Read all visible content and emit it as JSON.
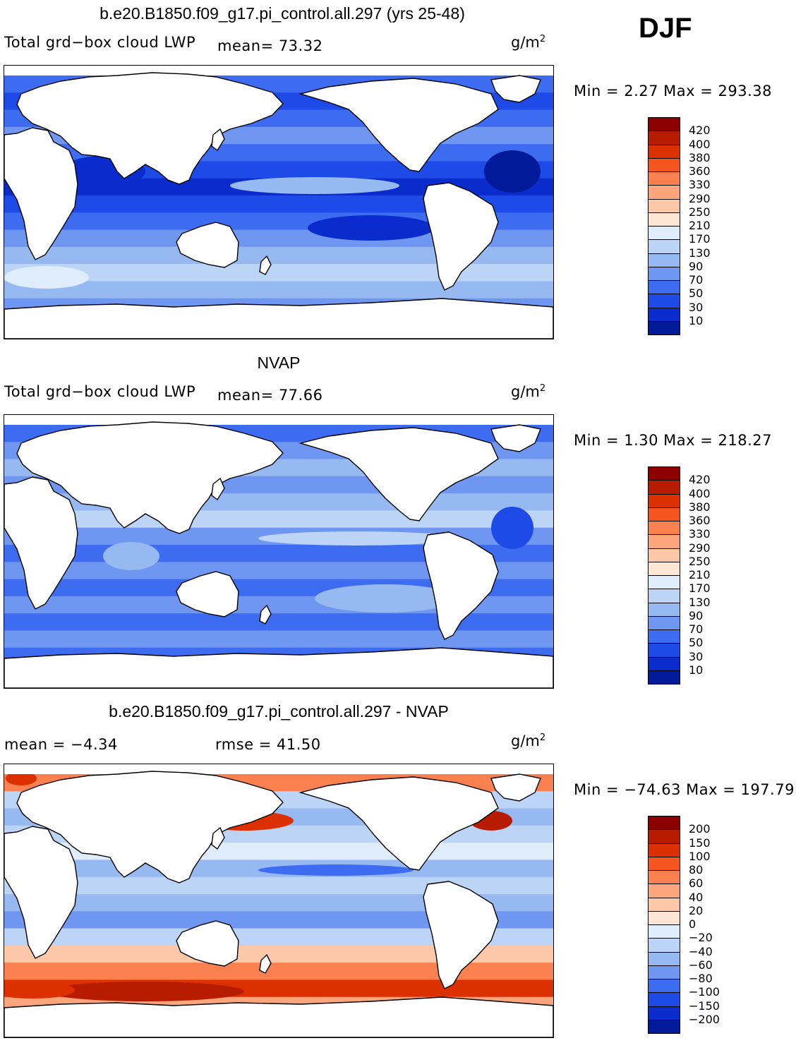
{
  "season_label": "DJF",
  "units": "g/m",
  "units_exp": "2",
  "panels": [
    {
      "title": "b.e20.B1850.f09_g17.pi_control.all.297 (yrs 25-48)",
      "variable": "Total grd−box cloud LWP",
      "stat_left": "mean=  73.32",
      "minmax": "Min =    2.27 Max = 293.38",
      "colorbar": {
        "labels": [
          "420",
          "400",
          "380",
          "360",
          "330",
          "290",
          "250",
          "210",
          "170",
          "130",
          "90",
          "70",
          "50",
          "30",
          "10"
        ],
        "colors": [
          "#8c0000",
          "#b81c00",
          "#dc3000",
          "#f65520",
          "#fb8050",
          "#fca47c",
          "#fcc8a8",
          "#fde6d4",
          "#dfecf9",
          "#bcd5f6",
          "#97b9f2",
          "#6f96f0",
          "#3d6cf0",
          "#1e4ae8",
          "#0a2ccc",
          "#001a9a"
        ]
      },
      "field": "lwp",
      "mean_value": 73.32,
      "min_value": 2.27,
      "max_value": 293.38
    },
    {
      "title": "NVAP",
      "variable": "Total grd−box cloud LWP",
      "stat_left": "mean=  77.66",
      "minmax": "Min =    1.30 Max = 218.27",
      "colorbar": {
        "labels": [
          "420",
          "400",
          "380",
          "360",
          "330",
          "290",
          "250",
          "210",
          "170",
          "130",
          "90",
          "70",
          "50",
          "30",
          "10"
        ],
        "colors": [
          "#8c0000",
          "#b81c00",
          "#dc3000",
          "#f65520",
          "#fb8050",
          "#fca47c",
          "#fcc8a8",
          "#fde6d4",
          "#dfecf9",
          "#bcd5f6",
          "#97b9f2",
          "#6f96f0",
          "#3d6cf0",
          "#1e4ae8",
          "#0a2ccc",
          "#001a9a"
        ]
      },
      "field": "nvap",
      "mean_value": 77.66,
      "min_value": 1.3,
      "max_value": 218.27
    },
    {
      "title": "b.e20.B1850.f09_g17.pi_control.all.297 - NVAP",
      "variable": "mean =  −4.34",
      "stat_left": "rmse =  41.50",
      "minmax": "Min = −74.63 Max = 197.79",
      "colorbar": {
        "labels": [
          "200",
          "150",
          "100",
          "80",
          "60",
          "40",
          "20",
          "0",
          "−20",
          "−40",
          "−60",
          "−80",
          "−100",
          "−150",
          "−200"
        ],
        "colors": [
          "#8c0000",
          "#b81c00",
          "#dc3000",
          "#f65520",
          "#fb8050",
          "#fca47c",
          "#fcc8a8",
          "#fde6d4",
          "#dfecf9",
          "#bcd5f6",
          "#97b9f2",
          "#6f96f0",
          "#3d6cf0",
          "#1e4ae8",
          "#0a2ccc",
          "#001a9a"
        ]
      },
      "field": "diff",
      "mean_value": -4.34,
      "rmse_value": 41.5,
      "min_value": -74.63,
      "max_value": 197.79
    }
  ]
}
